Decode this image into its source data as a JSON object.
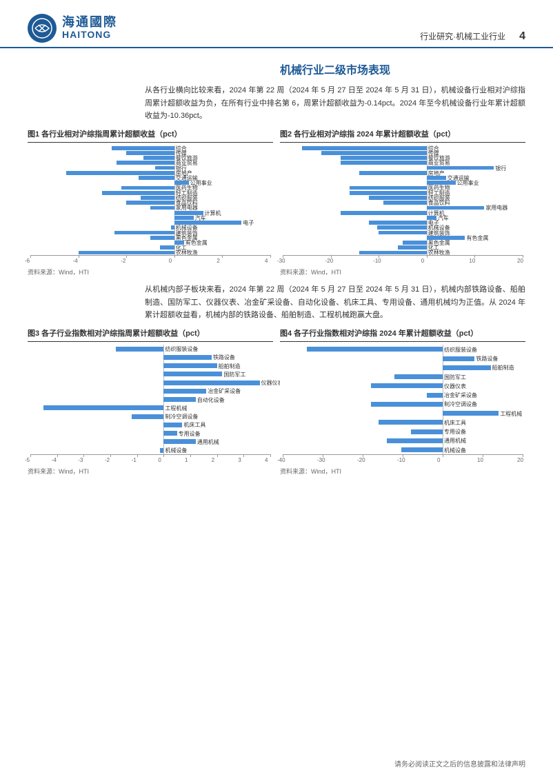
{
  "header": {
    "logo_cn": "海通國際",
    "logo_en": "HAITONG",
    "breadcrumb": "行业研究·机械工业行业",
    "page_number": "4"
  },
  "section_title": "机械行业二级市场表现",
  "para1": "从各行业横向比较来看，2024 年第 22 周（2024 年 5 月 27 日至 2024 年 5 月 31 日），机械设备行业相对沪综指周累计超额收益为负，在所有行业中排名第 6，周累计超额收益为-0.14pct。2024 年至今机械设备行业年累计超额收益为-10.36pct。",
  "para2": "从机械内部子板块来看，2024 年第 22 周（2024 年 5 月 27 日至 2024 年 5 月 31 日），机械内部铁路设备、船舶制造、国防军工、仪器仪表、冶金矿采设备、自动化设备、机床工具、专用设备、通用机械均为正值。从 2024 年累计超额收益看，机械内部的铁路设备、船舶制造、工程机械跑赢大盘。",
  "chart1": {
    "title": "图1  各行业相对沪综指周累计超额收益（pct）",
    "type": "bar-horizontal",
    "xlim": [
      -6,
      4
    ],
    "xticks": [
      -6,
      -4,
      -2,
      0,
      2,
      4
    ],
    "bar_color": "#4a90d9",
    "items": [
      {
        "label": "综合",
        "value": -2.6
      },
      {
        "label": "传媒",
        "value": -2.0
      },
      {
        "label": "餐饮旅游",
        "value": -1.3
      },
      {
        "label": "商业贸易",
        "value": -2.4
      },
      {
        "label": "银行",
        "value": -0.8
      },
      {
        "label": "房地产",
        "value": -4.5
      },
      {
        "label": "交通运输",
        "value": -1.5
      },
      {
        "label": "公用事业",
        "value": 0.6
      },
      {
        "label": "医药生物",
        "value": -2.2
      },
      {
        "label": "轻工制造",
        "value": -3.0
      },
      {
        "label": "纺织服装",
        "value": -1.4
      },
      {
        "label": "食品饮料",
        "value": -2.0
      },
      {
        "label": "家用电器",
        "value": -1.0
      },
      {
        "label": "计算机",
        "value": 1.2
      },
      {
        "label": "汽车",
        "value": 0.8
      },
      {
        "label": "电子",
        "value": 2.8
      },
      {
        "label": "机械设备",
        "value": -0.14
      },
      {
        "label": "建筑装饰",
        "value": -2.5
      },
      {
        "label": "黑色金属",
        "value": -1.0
      },
      {
        "label": "有色金属",
        "value": 0.4
      },
      {
        "label": "化工",
        "value": -0.6
      },
      {
        "label": "农林牧渔",
        "value": -4.0
      }
    ],
    "source": "资料来源：Wind，HTI"
  },
  "chart2": {
    "title": "图2  各行业相对沪综指 2024 年累计超额收益（pct）",
    "type": "bar-horizontal",
    "xlim": [
      -30,
      20
    ],
    "xticks": [
      -30,
      -20,
      -10,
      0,
      10,
      20
    ],
    "bar_color": "#4a90d9",
    "items": [
      {
        "label": "综合",
        "value": -26
      },
      {
        "label": "传媒",
        "value": -22
      },
      {
        "label": "餐饮旅游",
        "value": -18
      },
      {
        "label": "商业贸易",
        "value": -18
      },
      {
        "label": "银行",
        "value": 14
      },
      {
        "label": "房地产",
        "value": -14
      },
      {
        "label": "交通运输",
        "value": 4
      },
      {
        "label": "公用事业",
        "value": 6
      },
      {
        "label": "医药生物",
        "value": -16
      },
      {
        "label": "轻工制造",
        "value": -16
      },
      {
        "label": "纺织服装",
        "value": -12
      },
      {
        "label": "食品饮料",
        "value": -9
      },
      {
        "label": "家用电器",
        "value": 12
      },
      {
        "label": "计算机",
        "value": -18
      },
      {
        "label": "汽车",
        "value": 2
      },
      {
        "label": "电子",
        "value": -12
      },
      {
        "label": "机械设备",
        "value": -10.36
      },
      {
        "label": "建筑装饰",
        "value": -10
      },
      {
        "label": "有色金属",
        "value": 8
      },
      {
        "label": "黑色金属",
        "value": -5
      },
      {
        "label": "化工",
        "value": -6
      },
      {
        "label": "农林牧渔",
        "value": -14
      }
    ],
    "source": "资料来源：Wind，HTI"
  },
  "chart3": {
    "title": "图3  各子行业指数相对沪综指周累计超额收益（pct）",
    "type": "bar-horizontal",
    "xlim": [
      -5,
      4
    ],
    "xticks": [
      -5,
      -4,
      -3,
      -2,
      -1,
      0,
      1,
      2,
      3,
      4
    ],
    "bar_color": "#4a90d9",
    "items": [
      {
        "label": "纺织服装设备",
        "value": -1.8
      },
      {
        "label": "铁路设备",
        "value": 1.8
      },
      {
        "label": "船舶制造",
        "value": 2.0
      },
      {
        "label": "国防军工",
        "value": 2.2
      },
      {
        "label": "仪器仪表",
        "value": 3.6
      },
      {
        "label": "冶金矿采设备",
        "value": 1.6
      },
      {
        "label": "自动化设备",
        "value": 1.2
      },
      {
        "label": "工程机械",
        "value": -4.5
      },
      {
        "label": "制冷空调设备",
        "value": -1.2
      },
      {
        "label": "机床工具",
        "value": 0.7
      },
      {
        "label": "专用设备",
        "value": 0.5
      },
      {
        "label": "通用机械",
        "value": 1.2
      },
      {
        "label": "机械设备",
        "value": -0.14
      }
    ],
    "source": "资料来源：Wind，HTI"
  },
  "chart4": {
    "title": "图4  各子行业指数相对沪综指 2024 年累计超额收益（pct）",
    "type": "bar-horizontal",
    "xlim": [
      -40,
      20
    ],
    "xticks": [
      -40,
      -30,
      -20,
      -10,
      0,
      10,
      20
    ],
    "bar_color": "#4a90d9",
    "items": [
      {
        "label": "纺织服装设备",
        "value": -34
      },
      {
        "label": "铁路设备",
        "value": 8
      },
      {
        "label": "船舶制造",
        "value": 12
      },
      {
        "label": "国防军工",
        "value": -12
      },
      {
        "label": "仪器仪表",
        "value": -18
      },
      {
        "label": "冶金矿采设备",
        "value": -4
      },
      {
        "label": "制冷空调设备",
        "value": -18
      },
      {
        "label": "工程机械",
        "value": 14
      },
      {
        "label": "机床工具",
        "value": -16
      },
      {
        "label": "专用设备",
        "value": -8
      },
      {
        "label": "通用机械",
        "value": -14
      },
      {
        "label": "机械设备",
        "value": -10.36
      }
    ],
    "source": "资料来源：Wind，HTI"
  },
  "footer": "请务必阅读正文之后的信息披露和法律声明"
}
